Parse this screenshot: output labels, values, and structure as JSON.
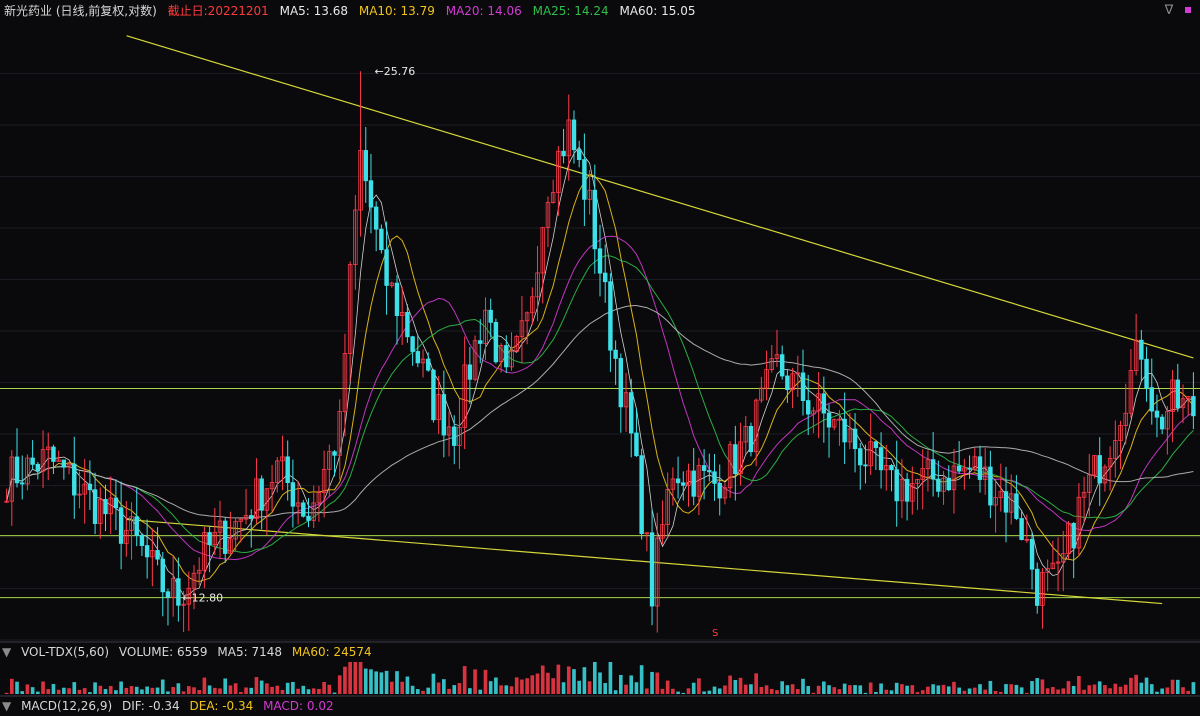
{
  "header": {
    "title": "新光药业 (日线,前复权,对数)",
    "date_label": "截止日:20221201",
    "ma": [
      {
        "label": "MA5: 13.68",
        "color": "#e8e8e8"
      },
      {
        "label": "MA10: 13.79",
        "color": "#f0c419"
      },
      {
        "label": "MA20: 14.06",
        "color": "#d43ad4"
      },
      {
        "label": "MA25: 14.24",
        "color": "#2fbf4a"
      },
      {
        "label": "MA60: 15.05",
        "color": "#e8e8e8"
      }
    ],
    "colors": {
      "title": "#e0e0e0",
      "date": "#ff3b3b"
    }
  },
  "annotations": {
    "high_label": "25.76",
    "low_label": "12.80",
    "signal_mark": "S"
  },
  "volume_header": {
    "name": "VOL-TDX(5,60)",
    "volume": "VOLUME: 6559",
    "ma5": "MA5: 7148",
    "ma60": "MA60: 24574",
    "ma60_color": "#f0c419"
  },
  "macd_header": {
    "name": "MACD(12,26,9)",
    "dif": "DIF: -0.34",
    "dea": "DEA: -0.34",
    "macd": "MACD: 0.02",
    "dea_color": "#f0c419",
    "macd_color": "#d43ad4"
  },
  "icons": [
    "collapse-icon",
    "close-icon"
  ],
  "chart_data": {
    "type": "candlestick",
    "high": 25.76,
    "low": 12.8,
    "last_ma": {
      "MA5": 13.68,
      "MA10": 13.79,
      "MA20": 14.06,
      "MA25": 14.24,
      "MA60": 15.05
    },
    "scale": "log",
    "colors": {
      "up": "#ff3b4a",
      "down": "#3ee0e8",
      "trendline": "#d6d63a",
      "hline": "#a8d64a",
      "panel_bg": "#0a0a0c",
      "grid": "#1c1c24"
    },
    "horizontal_levels": [
      16.9,
      13.9,
      12.8
    ],
    "trendlines": [
      {
        "from_index": 0,
        "to_index": 228,
        "from_price": 27.0,
        "to_price": 17.6
      },
      {
        "from_index": 0,
        "to_index": 222,
        "from_price": 14.2,
        "to_price": 12.7
      }
    ],
    "price_path": [
      [
        0,
        15.0
      ],
      [
        8,
        15.4
      ],
      [
        16,
        14.6
      ],
      [
        24,
        13.9
      ],
      [
        30,
        13.0
      ],
      [
        33,
        12.8
      ],
      [
        38,
        13.6
      ],
      [
        45,
        14.2
      ],
      [
        52,
        15.2
      ],
      [
        58,
        14.3
      ],
      [
        64,
        16.0
      ],
      [
        66,
        19.5
      ],
      [
        68,
        23.0
      ],
      [
        70,
        21.5
      ],
      [
        72,
        19.8
      ],
      [
        76,
        18.6
      ],
      [
        82,
        16.6
      ],
      [
        86,
        16.0
      ],
      [
        92,
        18.8
      ],
      [
        96,
        17.0
      ],
      [
        100,
        18.4
      ],
      [
        104,
        22.2
      ],
      [
        108,
        23.8
      ],
      [
        112,
        21.5
      ],
      [
        116,
        18.2
      ],
      [
        120,
        15.8
      ],
      [
        124,
        12.9
      ],
      [
        128,
        15.2
      ],
      [
        136,
        14.9
      ],
      [
        142,
        15.7
      ],
      [
        148,
        17.4
      ],
      [
        154,
        16.6
      ],
      [
        162,
        15.8
      ],
      [
        170,
        14.8
      ],
      [
        178,
        15.0
      ],
      [
        186,
        15.2
      ],
      [
        194,
        14.4
      ],
      [
        198,
        13.0
      ],
      [
        202,
        13.1
      ],
      [
        206,
        14.4
      ],
      [
        212,
        15.8
      ],
      [
        218,
        17.9
      ],
      [
        221,
        16.1
      ],
      [
        224,
        16.6
      ],
      [
        228,
        16.4
      ]
    ]
  }
}
